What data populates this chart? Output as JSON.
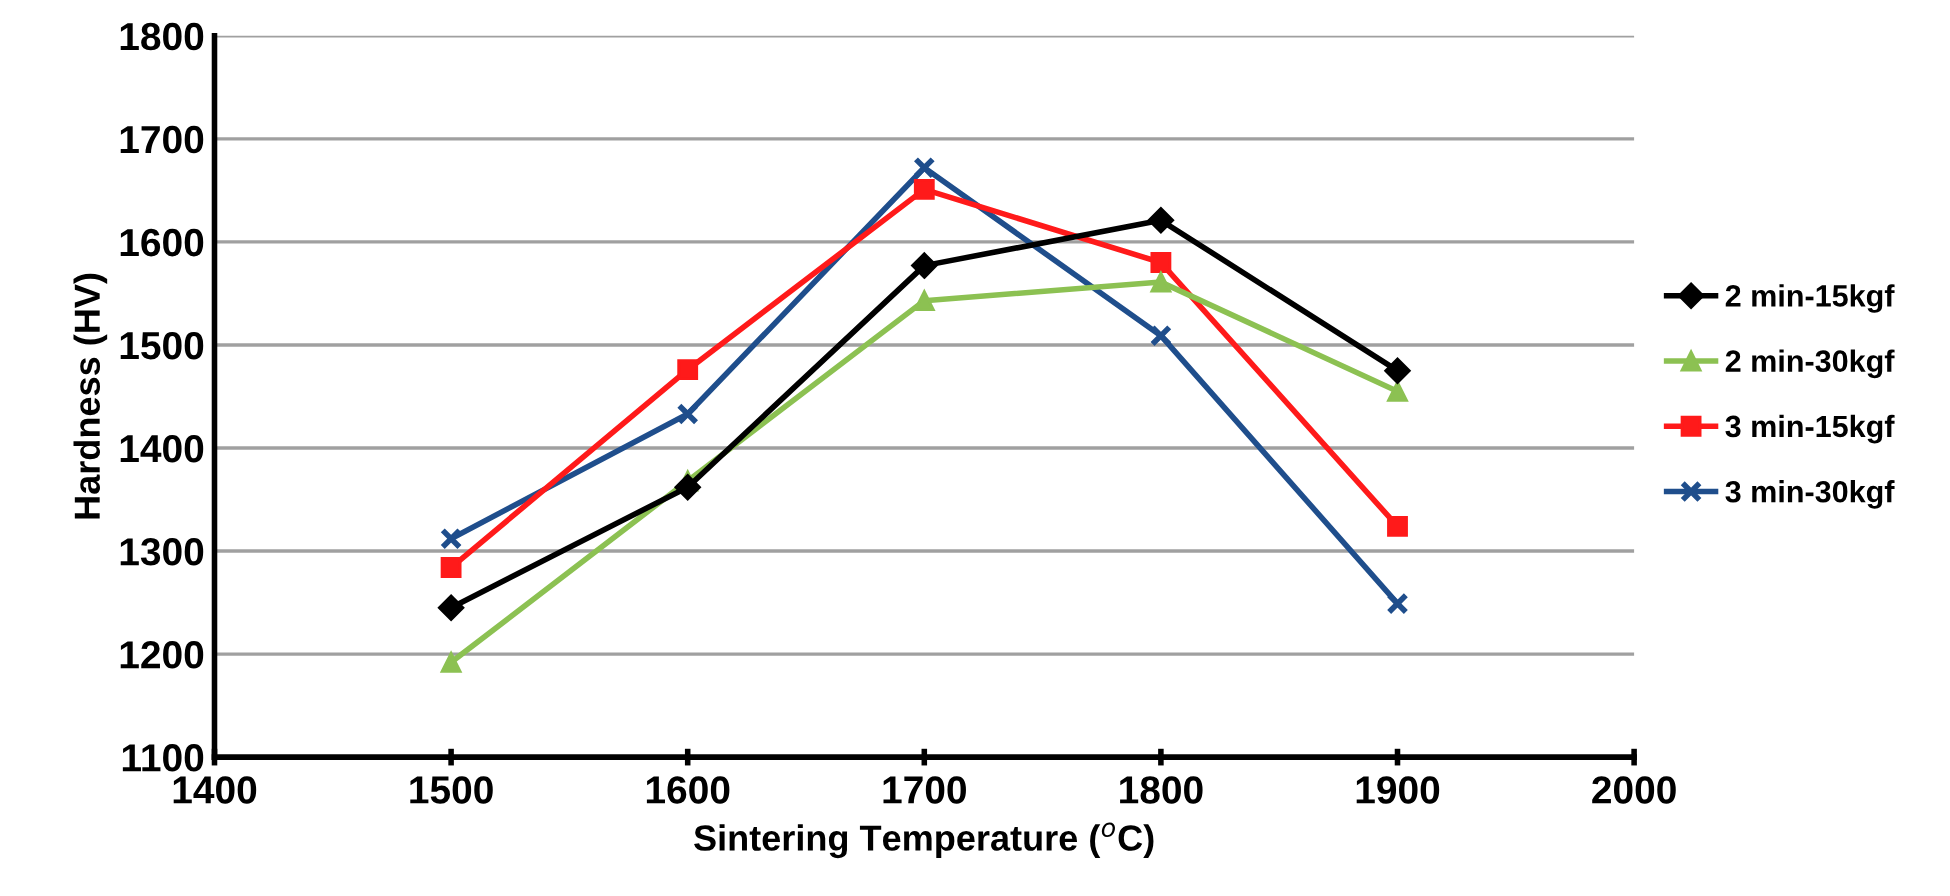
{
  "chart_data": {
    "type": "line",
    "xlabel": "Sintering Temperature ($^{o}$C)",
    "ylabel": "Hardness (HV)",
    "x": [
      1500,
      1600,
      1700,
      1800,
      1900
    ],
    "xlim": [
      1400,
      2000
    ],
    "xticks": [
      1400,
      1500,
      1600,
      1700,
      1800,
      1900,
      2000
    ],
    "ylim": [
      1100,
      1800
    ],
    "yticks": [
      1100,
      1200,
      1300,
      1400,
      1500,
      1600,
      1700,
      1800
    ],
    "grid": "y",
    "legend": "right",
    "series": [
      {
        "name": "2 min-15kgf",
        "color": "#000000",
        "marker": "diamond",
        "values": [
          1245,
          1362,
          1577,
          1621,
          1475
        ]
      },
      {
        "name": "2 min-30kgf",
        "color": "#8cc152",
        "marker": "triangle",
        "values": [
          1192,
          1368,
          1543,
          1561,
          1455
        ]
      },
      {
        "name": "3 min-15kgf",
        "color": "#ff1a1a",
        "marker": "square",
        "values": [
          1284,
          1476,
          1651,
          1580,
          1324
        ]
      },
      {
        "name": "3 min-30kgf",
        "color": "#1f4e8c",
        "marker": "cross",
        "values": [
          1312,
          1433,
          1672,
          1509,
          1249
        ]
      }
    ]
  }
}
